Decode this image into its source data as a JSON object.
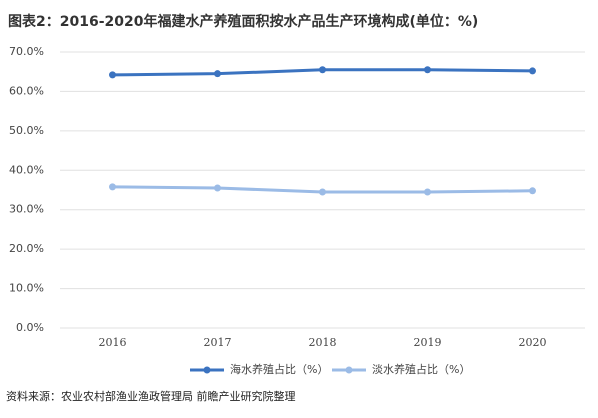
{
  "chart_data": {
    "type": "line",
    "title": "图表2：2016-2020年福建水产养殖面积按水产品生产环境构成(单位：%)",
    "source": "资料来源：农业农村部渔业渔政管理局 前瞻产业研究院整理",
    "categories": [
      "2016",
      "2017",
      "2018",
      "2019",
      "2020"
    ],
    "series": [
      {
        "name": "海水养殖占比（%）",
        "color": "#3b73c0",
        "values": [
          64.2,
          64.5,
          65.5,
          65.5,
          65.2
        ]
      },
      {
        "name": "淡水养殖占比（%）",
        "color": "#9bbbe6",
        "values": [
          35.8,
          35.5,
          34.5,
          34.5,
          34.8
        ]
      }
    ],
    "ylim": [
      0,
      70
    ],
    "yticks": [
      {
        "value": 0,
        "label": "0.0%"
      },
      {
        "value": 10,
        "label": "10.0%"
      },
      {
        "value": 20,
        "label": "20.0%"
      },
      {
        "value": 30,
        "label": "30.0%"
      },
      {
        "value": 40,
        "label": "40.0%"
      },
      {
        "value": 50,
        "label": "50.0%"
      },
      {
        "value": 60,
        "label": "60.0%"
      },
      {
        "value": 70,
        "label": "70.0%"
      }
    ],
    "grid": true,
    "legend": "bottom"
  }
}
